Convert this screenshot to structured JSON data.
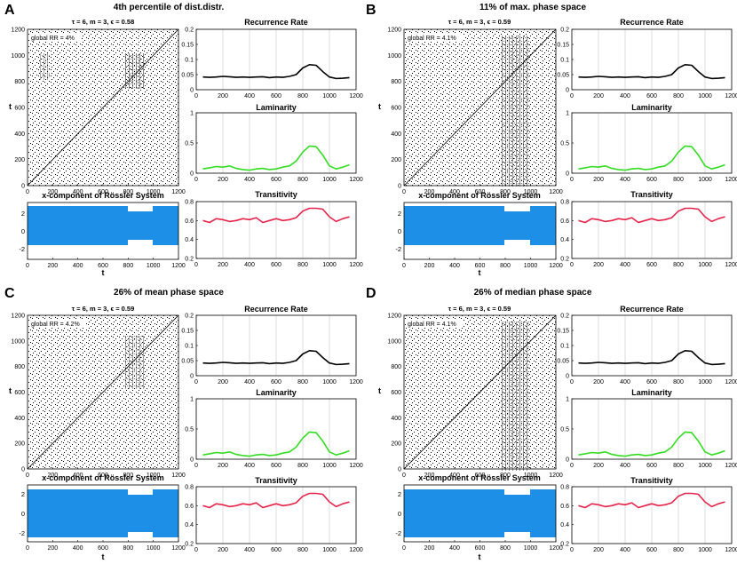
{
  "figure": {
    "axis_title_t": "t",
    "x_ticks": [
      "0",
      "200",
      "400",
      "600",
      "800",
      "1000",
      "1200"
    ],
    "rp_y_ticks": [
      "0",
      "200",
      "400",
      "600",
      "800",
      "1000",
      "1200"
    ],
    "ts_y_ticks": [
      "-2",
      "0",
      "2"
    ],
    "rr_y_ticks": [
      "0",
      "0.05",
      "0.1",
      "0.15",
      "0.2"
    ],
    "lam_y_ticks": [
      "0",
      "0.5",
      "1"
    ],
    "trans_y_ticks": [
      "0.2",
      "0.4",
      "0.6",
      "0.8"
    ],
    "colors": {
      "rr": "#000000",
      "lam": "#33dd22",
      "trans": "#e8234a",
      "ts": "#1e8fe6",
      "rp": "#000000"
    }
  },
  "panels": [
    {
      "letter": "A",
      "title": "4th percentile of dist.distr.",
      "rp_params": "τ = 6, m = 3, ϵ = 0.58",
      "rp_annotation": "global RR = 4%"
    },
    {
      "letter": "B",
      "title": "11% of max. phase space",
      "rp_params": "τ = 6, m = 3, ϵ = 0.59",
      "rp_annotation": "global RR = 4.1%"
    },
    {
      "letter": "C",
      "title": "26% of mean phase space",
      "rp_params": "τ = 6, m = 3, ϵ = 0.59",
      "rp_annotation": "global RR = 4.2%"
    },
    {
      "letter": "D",
      "title": "26% of median phase space",
      "rp_params": "τ = 6, m = 3, ϵ = 0.59",
      "rp_annotation": "global RR = 4.1%"
    }
  ],
  "chart_data": [
    {
      "type": "line",
      "title": "Recurrence Rate",
      "xlim": [
        0,
        1200
      ],
      "ylim": [
        0,
        0.2
      ],
      "grid": "vertical",
      "x": [
        50,
        100,
        150,
        200,
        250,
        300,
        350,
        400,
        450,
        500,
        550,
        600,
        650,
        700,
        750,
        800,
        850,
        900,
        950,
        1000,
        1050,
        1100,
        1150
      ],
      "values": [
        0.042,
        0.041,
        0.042,
        0.044,
        0.043,
        0.041,
        0.042,
        0.041,
        0.042,
        0.043,
        0.04,
        0.042,
        0.041,
        0.044,
        0.05,
        0.072,
        0.083,
        0.081,
        0.06,
        0.042,
        0.037,
        0.038,
        0.04
      ]
    },
    {
      "type": "line",
      "title": "Laminarity",
      "xlim": [
        0,
        1200
      ],
      "ylim": [
        0,
        1
      ],
      "grid": "vertical",
      "x": [
        50,
        100,
        150,
        200,
        250,
        300,
        350,
        400,
        450,
        500,
        550,
        600,
        650,
        700,
        750,
        800,
        850,
        900,
        950,
        1000,
        1050,
        1100,
        1150
      ],
      "values": [
        0.07,
        0.09,
        0.11,
        0.1,
        0.12,
        0.08,
        0.06,
        0.05,
        0.07,
        0.08,
        0.06,
        0.07,
        0.1,
        0.12,
        0.2,
        0.35,
        0.45,
        0.44,
        0.3,
        0.12,
        0.07,
        0.1,
        0.14
      ]
    },
    {
      "type": "line",
      "title": "Transitivity",
      "xlim": [
        0,
        1200
      ],
      "ylim": [
        0.2,
        0.8
      ],
      "grid": "vertical",
      "x": [
        50,
        100,
        150,
        200,
        250,
        300,
        350,
        400,
        450,
        500,
        550,
        600,
        650,
        700,
        750,
        800,
        850,
        900,
        950,
        1000,
        1050,
        1100,
        1150
      ],
      "values": [
        0.6,
        0.58,
        0.62,
        0.61,
        0.59,
        0.6,
        0.62,
        0.61,
        0.63,
        0.58,
        0.6,
        0.62,
        0.6,
        0.61,
        0.63,
        0.7,
        0.73,
        0.73,
        0.72,
        0.64,
        0.59,
        0.62,
        0.64
      ]
    },
    {
      "type": "line",
      "title": "x-component of Rössler System",
      "xlim": [
        0,
        1200
      ],
      "ylim": [
        -2.7,
        2.7
      ],
      "amplitude_by_segment": [
        {
          "from": 0,
          "to": 800,
          "values": [
            -2.3,
            2.3
          ]
        },
        {
          "from": 800,
          "to": 1000,
          "values": [
            -2.0,
            2.0
          ]
        },
        {
          "from": 1000,
          "to": 1200,
          "values": [
            -2.3,
            2.3
          ]
        }
      ]
    }
  ]
}
